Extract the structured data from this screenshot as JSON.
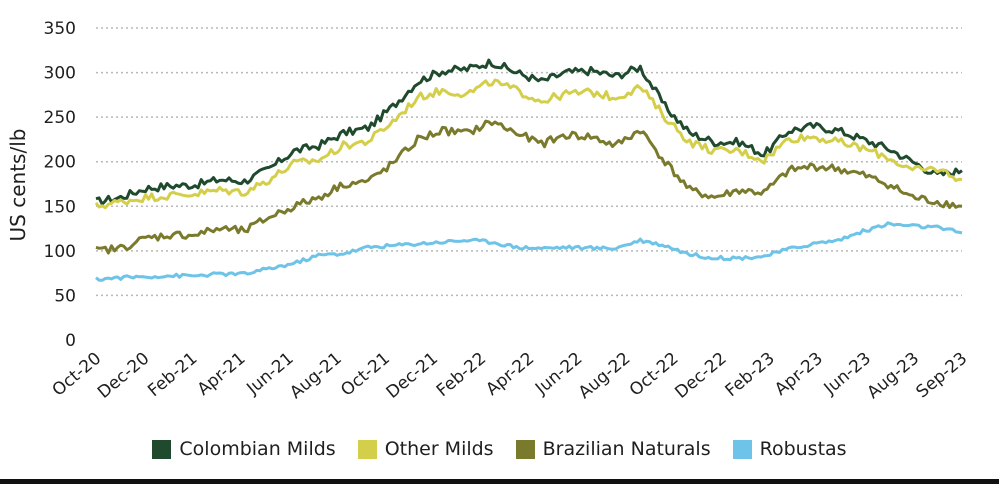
{
  "chart_data": {
    "type": "line",
    "title": "",
    "xlabel": "",
    "ylabel": "US cents/lb",
    "ylim": [
      0,
      350
    ],
    "yticks": [
      0,
      50,
      100,
      150,
      200,
      250,
      300,
      350
    ],
    "grid": true,
    "legend_position": "bottom",
    "xtick_labels": [
      "Oct-20",
      "Dec-20",
      "Feb-21",
      "Apr-21",
      "Jun-21",
      "Aug-21",
      "Oct-21",
      "Dec-21",
      "Feb-22",
      "Apr-22",
      "Jun-22",
      "Aug-22",
      "Oct-22",
      "Dec-22",
      "Feb-23",
      "Apr-23",
      "Jun-23",
      "Aug-23",
      "Sep-23"
    ],
    "x_months": [
      "2020-10",
      "2020-11",
      "2020-12",
      "2021-01",
      "2021-02",
      "2021-03",
      "2021-04",
      "2021-05",
      "2021-06",
      "2021-07",
      "2021-08",
      "2021-09",
      "2021-10",
      "2021-11",
      "2021-12",
      "2022-01",
      "2022-02",
      "2022-03",
      "2022-04",
      "2022-05",
      "2022-06",
      "2022-07",
      "2022-08",
      "2022-09",
      "2022-10",
      "2022-11",
      "2022-12",
      "2023-01",
      "2023-02",
      "2023-03",
      "2023-04",
      "2023-05",
      "2023-06",
      "2023-07",
      "2023-08",
      "2023-09"
    ],
    "series": [
      {
        "name": "Colombian Milds",
        "color": "#1f4a2e",
        "values": [
          155,
          160,
          170,
          173,
          174,
          180,
          178,
          192,
          212,
          218,
          232,
          238,
          262,
          290,
          302,
          304,
          312,
          300,
          290,
          300,
          302,
          296,
          306,
          262,
          232,
          222,
          222,
          208,
          235,
          240,
          235,
          225,
          215,
          200,
          185,
          190
        ]
      },
      {
        "name": "Other Milds",
        "color": "#d4cf4a",
        "values": [
          150,
          155,
          160,
          162,
          164,
          168,
          166,
          180,
          198,
          202,
          218,
          223,
          245,
          272,
          280,
          276,
          290,
          280,
          268,
          276,
          278,
          272,
          284,
          250,
          222,
          212,
          212,
          202,
          226,
          228,
          222,
          215,
          205,
          190,
          192,
          180
        ]
      },
      {
        "name": "Brazilian Naturals",
        "color": "#7a7a2c",
        "values": [
          100,
          103,
          114,
          118,
          118,
          125,
          122,
          138,
          150,
          160,
          175,
          178,
          198,
          225,
          235,
          232,
          245,
          232,
          220,
          230,
          228,
          218,
          236,
          200,
          168,
          160,
          168,
          165,
          190,
          195,
          192,
          185,
          175,
          160,
          155,
          150
        ]
      },
      {
        "name": "Robustas",
        "color": "#6ec3e8",
        "values": [
          68,
          70,
          71,
          72,
          72,
          74,
          74,
          80,
          86,
          95,
          97,
          104,
          106,
          108,
          110,
          112,
          110,
          104,
          103,
          104,
          103,
          103,
          112,
          106,
          96,
          92,
          92,
          94,
          102,
          108,
          112,
          122,
          130,
          128,
          126,
          120
        ]
      }
    ]
  }
}
